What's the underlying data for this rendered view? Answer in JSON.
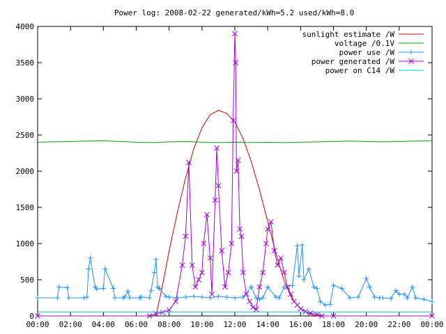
{
  "chart_data": {
    "type": "line",
    "title": "Power log: 2008-02-22 generated/kWh=5.2 used/kWh=8.0",
    "xlabel": "",
    "ylabel": "",
    "xlim": [
      0,
      24
    ],
    "ylim": [
      0,
      4000
    ],
    "grid": false,
    "legend_placement": "top-right",
    "x_ticks": [
      0,
      2,
      4,
      6,
      8,
      10,
      12,
      14,
      16,
      18,
      20,
      22,
      24
    ],
    "x_tick_labels": [
      "00:00",
      "02:00",
      "04:00",
      "06:00",
      "08:00",
      "10:00",
      "12:00",
      "14:00",
      "16:00",
      "18:00",
      "20:00",
      "22:00",
      "00:00"
    ],
    "y_ticks": [
      0,
      500,
      1000,
      1500,
      2000,
      2500,
      3000,
      3500,
      4000
    ],
    "y_tick_labels": [
      "0",
      "500",
      "1000",
      "1500",
      "2000",
      "2500",
      "3000",
      "3500",
      "4000"
    ],
    "series": [
      {
        "name": "sunlight estimate /W",
        "color": "#d00000",
        "marker": "none",
        "x": [
          7.2,
          7.6,
          8.0,
          8.5,
          9.0,
          9.5,
          10.0,
          10.5,
          11.0,
          11.5,
          12.0,
          12.5,
          13.0,
          13.5,
          14.0,
          14.5,
          15.0,
          15.5,
          16.0,
          16.5,
          17.0
        ],
        "values": [
          0,
          420,
          900,
          1430,
          1910,
          2310,
          2600,
          2780,
          2840,
          2800,
          2680,
          2450,
          2130,
          1740,
          1300,
          860,
          480,
          230,
          100,
          30,
          0
        ]
      },
      {
        "name": "voltage /0.1V",
        "color": "#00a000",
        "marker": "none",
        "x": [
          0,
          1,
          2,
          3,
          4,
          5,
          6,
          7,
          8,
          9,
          10,
          11,
          12,
          13,
          14,
          15,
          16,
          17,
          18,
          19,
          20,
          21,
          22,
          23,
          24
        ],
        "values": [
          2400,
          2405,
          2410,
          2415,
          2420,
          2410,
          2400,
          2395,
          2405,
          2410,
          2400,
          2395,
          2400,
          2395,
          2400,
          2395,
          2400,
          2405,
          2410,
          2415,
          2410,
          2405,
          2410,
          2415,
          2420
        ]
      },
      {
        "name": "power use /W",
        "color": "#1e90ff",
        "marker": "plus",
        "x": [
          0,
          1.2,
          1.3,
          1.8,
          1.9,
          2.8,
          3.0,
          3.1,
          3.2,
          3.5,
          3.6,
          4.0,
          4.1,
          4.6,
          4.7,
          5.2,
          5.3,
          5.5,
          5.6,
          6.2,
          6.3,
          6.8,
          6.9,
          7.1,
          7.2,
          7.3,
          7.4,
          7.8,
          8.0,
          8.5,
          9.0,
          9.5,
          10.0,
          10.5,
          11.0,
          11.5,
          12.0,
          12.5,
          13.0,
          13.3,
          13.5,
          13.7,
          14.0,
          14.5,
          14.7,
          15.0,
          15.5,
          15.8,
          15.9,
          16.1,
          16.2,
          16.5,
          16.8,
          17.0,
          17.2,
          17.5,
          17.8,
          18.0,
          18.5,
          19.0,
          19.5,
          20.0,
          20.2,
          20.5,
          20.8,
          21.0,
          21.5,
          21.8,
          22.0,
          22.3,
          22.5,
          22.8,
          23.0,
          23.5,
          24.0
        ],
        "values": [
          250,
          250,
          400,
          390,
          250,
          250,
          260,
          650,
          800,
          400,
          370,
          380,
          650,
          380,
          250,
          250,
          260,
          340,
          250,
          250,
          260,
          250,
          350,
          600,
          780,
          400,
          380,
          270,
          260,
          250,
          260,
          270,
          260,
          250,
          270,
          260,
          250,
          260,
          400,
          250,
          230,
          250,
          400,
          260,
          250,
          400,
          420,
          970,
          550,
          980,
          500,
          650,
          400,
          380,
          200,
          150,
          160,
          420,
          380,
          250,
          260,
          520,
          400,
          260,
          250,
          250,
          240,
          350,
          300,
          300,
          250,
          400,
          250,
          230,
          200
        ]
      },
      {
        "name": "power generated /W",
        "color": "#a000e0",
        "marker": "cross",
        "x": [
          0,
          6.8,
          7.2,
          7.6,
          8.0,
          8.4,
          8.8,
          9.0,
          9.2,
          9.4,
          9.6,
          9.8,
          10.0,
          10.1,
          10.3,
          10.5,
          10.6,
          10.8,
          10.9,
          11.0,
          11.2,
          11.4,
          11.6,
          11.8,
          11.9,
          12.0,
          12.05,
          12.1,
          12.2,
          12.3,
          12.4,
          12.5,
          12.7,
          12.9,
          13.1,
          13.3,
          13.5,
          13.7,
          13.9,
          14.0,
          14.2,
          14.4,
          14.6,
          14.8,
          15.0,
          15.2,
          15.4,
          15.6,
          15.8,
          16.0,
          16.3,
          16.6,
          17.0,
          17.3,
          18.0,
          24.0
        ],
        "values": [
          0,
          0,
          30,
          50,
          80,
          200,
          700,
          1100,
          2120,
          700,
          400,
          500,
          600,
          1000,
          1400,
          800,
          300,
          1600,
          2320,
          1800,
          900,
          400,
          600,
          1000,
          2700,
          3900,
          3500,
          2000,
          2150,
          1200,
          1100,
          600,
          300,
          200,
          120,
          90,
          400,
          600,
          1000,
          1200,
          1300,
          900,
          700,
          800,
          600,
          400,
          300,
          200,
          150,
          100,
          60,
          40,
          20,
          0,
          0,
          0
        ]
      },
      {
        "name": "power on C14 /W",
        "color": "#00c8c8",
        "marker": "none",
        "x": [
          0,
          4,
          8,
          12,
          16,
          20,
          24
        ],
        "values": [
          55,
          55,
          55,
          55,
          55,
          55,
          55
        ]
      }
    ]
  }
}
